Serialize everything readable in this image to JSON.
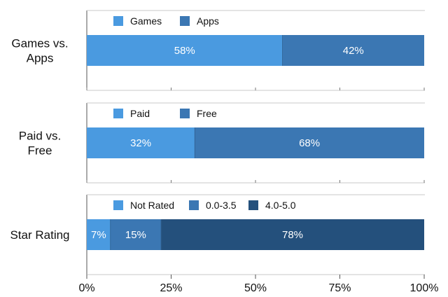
{
  "chart_data": {
    "type": "bar",
    "orientation": "horizontal",
    "stacked": true,
    "x_ticks": [
      "0%",
      "25%",
      "50%",
      "75%",
      "100%"
    ],
    "xlim": [
      0,
      100
    ],
    "colors": [
      "#4a9ae0",
      "#3b77b3",
      "#24507c"
    ],
    "panels": [
      {
        "category": "Games vs. Apps",
        "category_lines": [
          "Games vs.",
          "Apps"
        ],
        "series": [
          {
            "name": "Games",
            "value": 58,
            "label": "58%",
            "color": "#4a9ae0"
          },
          {
            "name": "Apps",
            "value": 42,
            "label": "42%",
            "color": "#3b77b3"
          }
        ]
      },
      {
        "category": "Paid vs. Free",
        "category_lines": [
          "Paid vs.",
          "Free"
        ],
        "series": [
          {
            "name": "Paid",
            "value": 32,
            "label": "32%",
            "color": "#4a9ae0"
          },
          {
            "name": "Free",
            "value": 68,
            "label": "68%",
            "color": "#3b77b3"
          }
        ]
      },
      {
        "category": "Star Rating",
        "category_lines": [
          "Star Rating"
        ],
        "series": [
          {
            "name": "Not Rated",
            "value": 7,
            "label": "7%",
            "color": "#4a9ae0"
          },
          {
            "name": "0.0-3.5",
            "value": 15,
            "label": "15%",
            "color": "#3b77b3"
          },
          {
            "name": "4.0-5.0",
            "value": 78,
            "label": "78%",
            "color": "#24507c"
          }
        ]
      }
    ]
  }
}
